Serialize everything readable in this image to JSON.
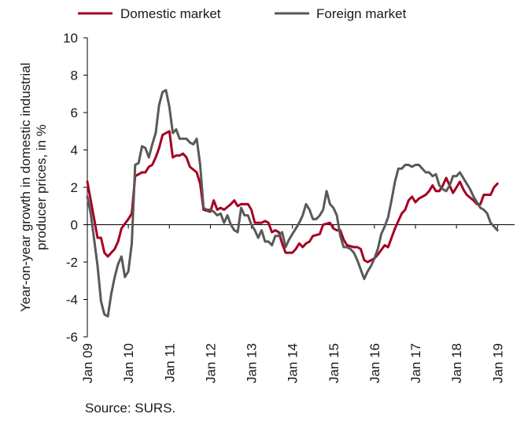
{
  "chart_data": {
    "type": "line",
    "title": "",
    "xlabel": "",
    "ylabel": "Year-on-year growth in domestic industrial producer prices, in %",
    "source": "Source: SURS.",
    "ylim": [
      -6,
      10
    ],
    "yticks": [
      -6,
      -4,
      -2,
      0,
      2,
      4,
      6,
      8,
      10
    ],
    "x_start": "Jan 09",
    "x_end": "Jun 19",
    "x_ticks": [
      "Jan 09",
      "Jan 10",
      "Jan 11",
      "Jan 12",
      "Jan 13",
      "Jan 14",
      "Jan 15",
      "Jan 16",
      "Jan 17",
      "Jan 18",
      "Jan 19"
    ],
    "grid": false,
    "legend": "top",
    "series": [
      {
        "name": "Domestic market",
        "color": "#a50021",
        "points": [
          [
            "Jan 09",
            2.3
          ],
          [
            "Mar 09",
            0.3
          ],
          [
            "Apr 09",
            -0.7
          ],
          [
            "May 09",
            -0.7
          ],
          [
            "Jun 09",
            -1.5
          ],
          [
            "Jul 09",
            -1.7
          ],
          [
            "Sep 09",
            -1.3
          ],
          [
            "Oct 09",
            -0.9
          ],
          [
            "Nov 09",
            -0.2
          ],
          [
            "Jan 10",
            0.3
          ],
          [
            "Feb 10",
            0.6
          ],
          [
            "Mar 10",
            2.6
          ],
          [
            "May 10",
            2.8
          ],
          [
            "Jun 10",
            2.8
          ],
          [
            "Jul 10",
            3.1
          ],
          [
            "Aug 10",
            3.2
          ],
          [
            "Sep 10",
            3.6
          ],
          [
            "Oct 10",
            4.1
          ],
          [
            "Nov 10",
            4.8
          ],
          [
            "Dec 10",
            4.9
          ],
          [
            "Jan 11",
            5.0
          ],
          [
            "Feb 11",
            3.6
          ],
          [
            "Mar 11",
            3.7
          ],
          [
            "Apr 11",
            3.7
          ],
          [
            "May 11",
            3.8
          ],
          [
            "Jun 11",
            3.6
          ],
          [
            "Jul 11",
            3.1
          ],
          [
            "Sep 11",
            2.8
          ],
          [
            "Oct 11",
            2.2
          ],
          [
            "Nov 11",
            0.8
          ],
          [
            "Jan 12",
            0.7
          ],
          [
            "Feb 12",
            1.3
          ],
          [
            "Mar 12",
            0.8
          ],
          [
            "Apr 12",
            0.9
          ],
          [
            "May 12",
            0.8
          ],
          [
            "Jul 12",
            1.1
          ],
          [
            "Aug 12",
            1.3
          ],
          [
            "Sep 12",
            1.0
          ],
          [
            "Oct 12",
            1.1
          ],
          [
            "Dec 12",
            1.1
          ],
          [
            "Jan 13",
            0.8
          ],
          [
            "Feb 13",
            0.1
          ],
          [
            "Mar 13",
            0.1
          ],
          [
            "Apr 13",
            0.1
          ],
          [
            "May 13",
            0.2
          ],
          [
            "Jun 13",
            0.1
          ],
          [
            "Jul 13",
            -0.4
          ],
          [
            "Aug 13",
            -0.3
          ],
          [
            "Sep 13",
            -0.4
          ],
          [
            "Oct 13",
            -1.0
          ],
          [
            "Nov 13",
            -1.5
          ],
          [
            "Jan 14",
            -1.5
          ],
          [
            "Feb 14",
            -1.3
          ],
          [
            "Mar 14",
            -1.0
          ],
          [
            "Apr 14",
            -1.2
          ],
          [
            "May 14",
            -1.0
          ],
          [
            "Jun 14",
            -0.9
          ],
          [
            "Jul 14",
            -0.6
          ],
          [
            "Sep 14",
            -0.5
          ],
          [
            "Oct 14",
            0.0
          ],
          [
            "Dec 14",
            0.1
          ],
          [
            "Jan 15",
            -0.2
          ],
          [
            "Feb 15",
            -0.3
          ],
          [
            "Mar 15",
            -0.3
          ],
          [
            "Apr 15",
            -0.8
          ],
          [
            "May 15",
            -1.1
          ],
          [
            "Jul 15",
            -1.2
          ],
          [
            "Aug 15",
            -1.2
          ],
          [
            "Sep 15",
            -1.3
          ],
          [
            "Oct 15",
            -1.9
          ],
          [
            "Nov 15",
            -2.0
          ],
          [
            "Jan 16",
            -1.8
          ],
          [
            "Feb 16",
            -1.6
          ],
          [
            "Apr 16",
            -1.1
          ],
          [
            "May 16",
            -1.2
          ],
          [
            "Jul 16",
            -0.2
          ],
          [
            "Aug 16",
            0.2
          ],
          [
            "Sep 16",
            0.6
          ],
          [
            "Oct 16",
            0.8
          ],
          [
            "Nov 16",
            1.3
          ],
          [
            "Dec 16",
            1.5
          ],
          [
            "Jan 17",
            1.2
          ],
          [
            "Feb 17",
            1.4
          ],
          [
            "Apr 17",
            1.6
          ],
          [
            "May 17",
            1.8
          ],
          [
            "Jun 17",
            2.1
          ],
          [
            "Jul 17",
            1.8
          ],
          [
            "Aug 17",
            1.8
          ],
          [
            "Sep 17",
            2.1
          ],
          [
            "Oct 17",
            2.5
          ],
          [
            "Dec 17",
            1.7
          ],
          [
            "Jan 18",
            2.0
          ],
          [
            "Feb 18",
            2.3
          ],
          [
            "Mar 18",
            1.9
          ],
          [
            "Apr 18",
            1.6
          ],
          [
            "Jun 18",
            1.3
          ],
          [
            "Jul 18",
            1.1
          ],
          [
            "Aug 18",
            1.1
          ],
          [
            "Sep 18",
            1.6
          ],
          [
            "Oct 18",
            1.6
          ],
          [
            "Nov 18",
            1.6
          ],
          [
            "Dec 18",
            2.0
          ],
          [
            "Jan 19",
            2.2
          ]
        ]
      },
      {
        "name": "Foreign market",
        "color": "#595959",
        "points": [
          [
            "Jan 09",
            1.5
          ],
          [
            "Feb 09",
            0.6
          ],
          [
            "Mar 09",
            -0.8
          ],
          [
            "Apr 09",
            -2.2
          ],
          [
            "May 09",
            -4.1
          ],
          [
            "Jun 09",
            -4.8
          ],
          [
            "Jul 09",
            -4.9
          ],
          [
            "Aug 09",
            -3.7
          ],
          [
            "Sep 09",
            -2.8
          ],
          [
            "Oct 09",
            -2.1
          ],
          [
            "Nov 09",
            -1.7
          ],
          [
            "Dec 09",
            -2.8
          ],
          [
            "Jan 10",
            -2.5
          ],
          [
            "Feb 10",
            -1.0
          ],
          [
            "Mar 10",
            3.2
          ],
          [
            "Apr 10",
            3.3
          ],
          [
            "May 10",
            4.2
          ],
          [
            "Jun 10",
            4.1
          ],
          [
            "Jul 10",
            3.6
          ],
          [
            "Aug 10",
            4.3
          ],
          [
            "Sep 10",
            4.9
          ],
          [
            "Oct 10",
            6.4
          ],
          [
            "Nov 10",
            7.1
          ],
          [
            "Dec 10",
            7.2
          ],
          [
            "Jan 11",
            6.3
          ],
          [
            "Feb 11",
            4.9
          ],
          [
            "Mar 11",
            5.1
          ],
          [
            "Apr 11",
            4.6
          ],
          [
            "Jun 11",
            4.6
          ],
          [
            "Jul 11",
            4.4
          ],
          [
            "Aug 11",
            4.3
          ],
          [
            "Sep 11",
            4.6
          ],
          [
            "Oct 11",
            3.2
          ],
          [
            "Nov 11",
            0.9
          ],
          [
            "Dec 11",
            0.8
          ],
          [
            "Jan 12",
            0.8
          ],
          [
            "Feb 12",
            0.7
          ],
          [
            "Mar 12",
            0.5
          ],
          [
            "Apr 12",
            0.6
          ],
          [
            "May 12",
            0.1
          ],
          [
            "Jun 12",
            0.5
          ],
          [
            "Jul 12",
            0.0
          ],
          [
            "Aug 12",
            -0.3
          ],
          [
            "Sep 12",
            -0.4
          ],
          [
            "Oct 12",
            0.9
          ],
          [
            "Nov 12",
            0.5
          ],
          [
            "Dec 12",
            0.5
          ],
          [
            "Jan 13",
            0.0
          ],
          [
            "Feb 13",
            -0.3
          ],
          [
            "Mar 13",
            -0.7
          ],
          [
            "Apr 13",
            -0.3
          ],
          [
            "May 13",
            -0.9
          ],
          [
            "Jun 13",
            -0.9
          ],
          [
            "Jul 13",
            -1.1
          ],
          [
            "Aug 13",
            -0.6
          ],
          [
            "Sep 13",
            -0.6
          ],
          [
            "Oct 13",
            -0.4
          ],
          [
            "Nov 13",
            -1.2
          ],
          [
            "Dec 13",
            -0.8
          ],
          [
            "Jan 14",
            -0.5
          ],
          [
            "Feb 14",
            -0.2
          ],
          [
            "Mar 14",
            0.1
          ],
          [
            "Apr 14",
            0.5
          ],
          [
            "May 14",
            1.1
          ],
          [
            "Jun 14",
            0.8
          ],
          [
            "Jul 14",
            0.3
          ],
          [
            "Aug 14",
            0.3
          ],
          [
            "Sep 14",
            0.5
          ],
          [
            "Oct 14",
            0.8
          ],
          [
            "Nov 14",
            1.8
          ],
          [
            "Dec 14",
            1.1
          ],
          [
            "Jan 15",
            0.9
          ],
          [
            "Feb 15",
            0.5
          ],
          [
            "Mar 15",
            -0.6
          ],
          [
            "Apr 15",
            -1.2
          ],
          [
            "May 15",
            -1.2
          ],
          [
            "Jun 15",
            -1.3
          ],
          [
            "Jul 15",
            -1.5
          ],
          [
            "Aug 15",
            -1.9
          ],
          [
            "Sep 15",
            -2.4
          ],
          [
            "Oct 15",
            -2.9
          ],
          [
            "Nov 15",
            -2.5
          ],
          [
            "Dec 15",
            -2.2
          ],
          [
            "Jan 16",
            -1.8
          ],
          [
            "Feb 16",
            -1.3
          ],
          [
            "Mar 16",
            -0.5
          ],
          [
            "Apr 16",
            -0.1
          ],
          [
            "May 16",
            0.4
          ],
          [
            "Jun 16",
            1.3
          ],
          [
            "Jul 16",
            2.3
          ],
          [
            "Aug 16",
            3.0
          ],
          [
            "Sep 16",
            3.0
          ],
          [
            "Oct 16",
            3.2
          ],
          [
            "Nov 16",
            3.2
          ],
          [
            "Dec 16",
            3.1
          ],
          [
            "Jan 17",
            3.2
          ],
          [
            "Feb 17",
            3.2
          ],
          [
            "Mar 17",
            3.0
          ],
          [
            "Apr 17",
            2.8
          ],
          [
            "May 17",
            2.8
          ],
          [
            "Jun 17",
            2.6
          ],
          [
            "Jul 17",
            2.7
          ],
          [
            "Aug 17",
            2.1
          ],
          [
            "Sep 17",
            1.9
          ],
          [
            "Oct 17",
            1.8
          ],
          [
            "Nov 17",
            2.1
          ],
          [
            "Dec 17",
            2.6
          ],
          [
            "Jan 18",
            2.6
          ],
          [
            "Feb 18",
            2.8
          ],
          [
            "Mar 18",
            2.5
          ],
          [
            "Apr 18",
            2.2
          ],
          [
            "May 18",
            1.9
          ],
          [
            "Jun 18",
            1.5
          ],
          [
            "Jul 18",
            1.2
          ],
          [
            "Aug 18",
            0.9
          ],
          [
            "Sep 18",
            0.8
          ],
          [
            "Oct 18",
            0.6
          ],
          [
            "Nov 18",
            0.1
          ],
          [
            "Jan 19",
            -0.3
          ]
        ]
      }
    ]
  }
}
